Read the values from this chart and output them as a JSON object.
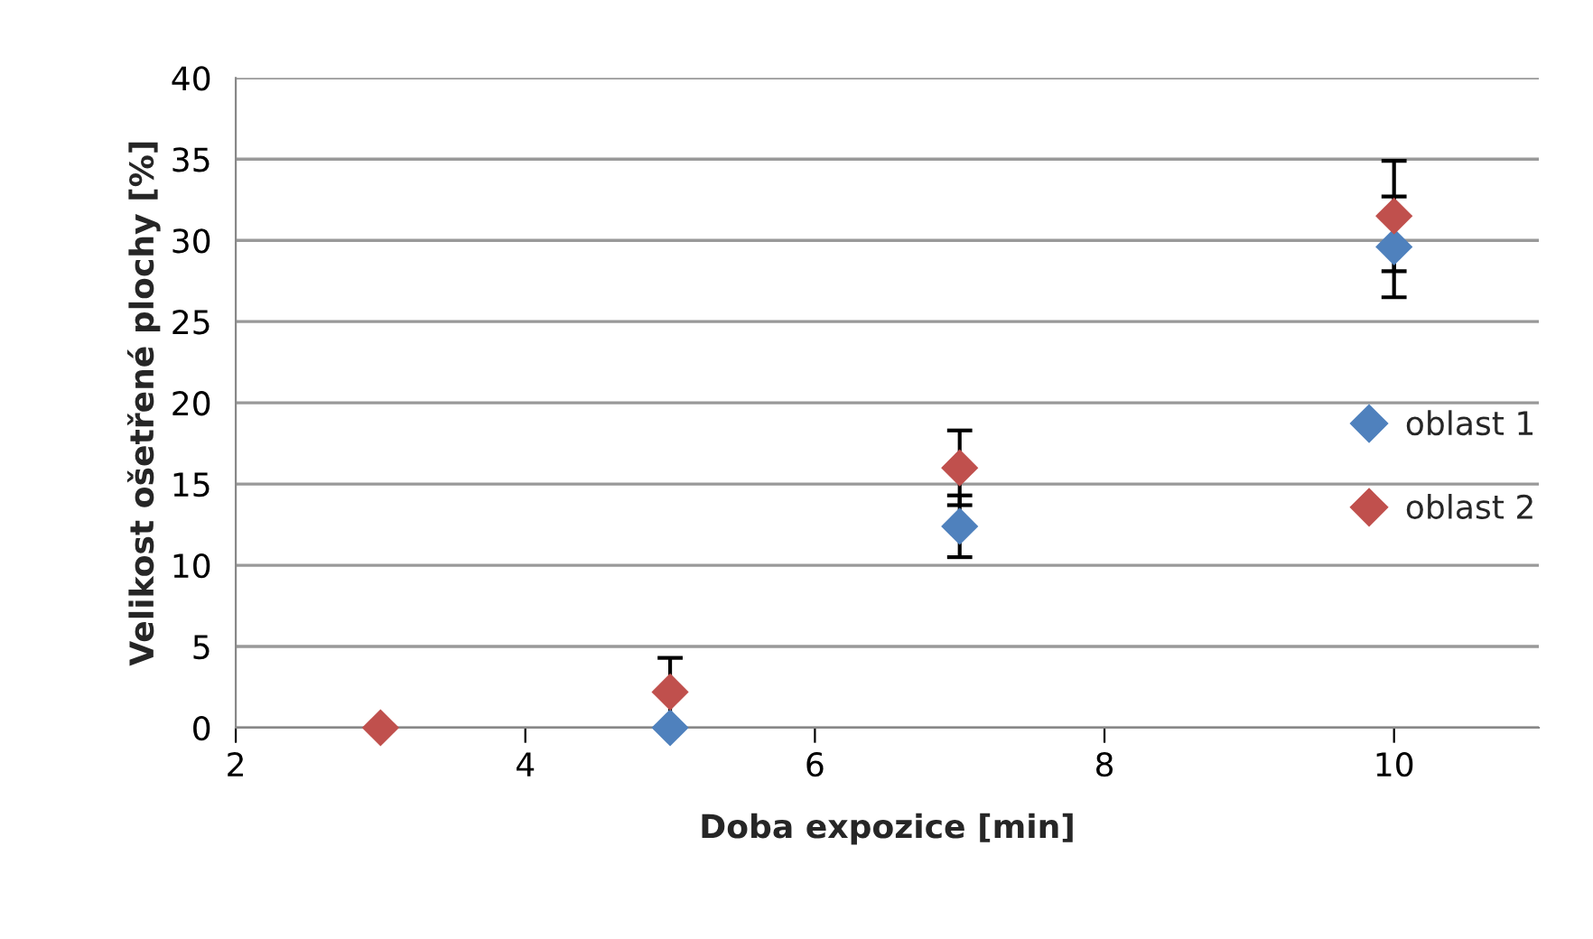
{
  "chart_data": {
    "type": "scatter",
    "xlabel": "Doba expozice [min]",
    "ylabel": "Velikost ošetřené plochy [%]",
    "x": [
      3,
      5,
      7,
      10
    ],
    "series": [
      {
        "name": "oblast 1",
        "color": "#4f81bd",
        "values": [
          null,
          0,
          12.4,
          29.6
        ],
        "errors": [
          null,
          null,
          1.9,
          3.1
        ]
      },
      {
        "name": "oblast 2",
        "color": "#c0504d",
        "values": [
          0,
          2.2,
          16,
          31.5
        ],
        "errors": [
          null,
          2.1,
          2.3,
          3.4
        ]
      }
    ],
    "xlim": [
      2,
      11
    ],
    "xticks": [
      2,
      4,
      6,
      8,
      10
    ],
    "ylim": [
      0,
      40
    ],
    "yticks": [
      0,
      5,
      10,
      15,
      20,
      25,
      30,
      35,
      40
    ],
    "grid": "y",
    "legend": "right",
    "marker": "diamond"
  }
}
